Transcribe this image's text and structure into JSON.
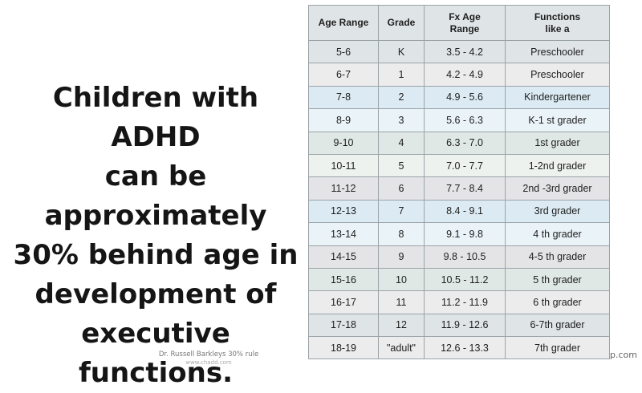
{
  "headline": [
    "Children with ADHD",
    "can be approximately",
    "30% behind age in",
    "development of",
    "executive functions."
  ],
  "source": "Dr. Russell Barkleys 30% rule",
  "source_site": "www.chadd.com",
  "watermark": "wp.com",
  "table": {
    "headers": [
      "Age Range",
      "Grade",
      "Fx Age\nRange",
      "Functions\nlike a"
    ],
    "rows": [
      {
        "age": "5-6",
        "grade": "K",
        "fx": "3.5 - 4.2",
        "like": "Preschooler",
        "bg": "#dfe4e6"
      },
      {
        "age": "6-7",
        "grade": "1",
        "fx": "4.2 - 4.9",
        "like": "Preschooler",
        "bg": "#ececec"
      },
      {
        "age": "7-8",
        "grade": "2",
        "fx": "4.9 - 5.6",
        "like": "Kindergartener",
        "bg": "#dcebf3"
      },
      {
        "age": "8-9",
        "grade": "3",
        "fx": "5.6 - 6.3",
        "like": "K-1 st grader",
        "bg": "#eaf3f8"
      },
      {
        "age": "9-10",
        "grade": "4",
        "fx": "6.3 - 7.0",
        "like": "1st grader",
        "bg": "#dfe8e4"
      },
      {
        "age": "10-11",
        "grade": "5",
        "fx": "7.0 - 7.7",
        "like": "1-2nd grader",
        "bg": "#edf2ef"
      },
      {
        "age": "11-12",
        "grade": "6",
        "fx": "7.7 - 8.4",
        "like": "2nd -3rd grader",
        "bg": "#e4e4e6"
      },
      {
        "age": "12-13",
        "grade": "7",
        "fx": "8.4 - 9.1",
        "like": "3rd grader",
        "bg": "#dcebf3"
      },
      {
        "age": "13-14",
        "grade": "8",
        "fx": "9.1 - 9.8",
        "like": "4 th grader",
        "bg": "#eaf3f8"
      },
      {
        "age": "14-15",
        "grade": "9",
        "fx": "9.8 - 10.5",
        "like": "4-5 th grader",
        "bg": "#e4e4e6"
      },
      {
        "age": "15-16",
        "grade": "10",
        "fx": "10.5 - 11.2",
        "like": "5 th grader",
        "bg": "#dfe8e4"
      },
      {
        "age": "16-17",
        "grade": "11",
        "fx": "11.2 - 11.9",
        "like": "6 th grader",
        "bg": "#ececec"
      },
      {
        "age": "17-18",
        "grade": "12",
        "fx": "11.9 - 12.6",
        "like": "6-7th grader",
        "bg": "#dfe4e6"
      },
      {
        "age": "18-19",
        "grade": "\"adult\"",
        "fx": "12.6 - 13.3",
        "like": "7th grader",
        "bg": "#ececec"
      }
    ]
  }
}
